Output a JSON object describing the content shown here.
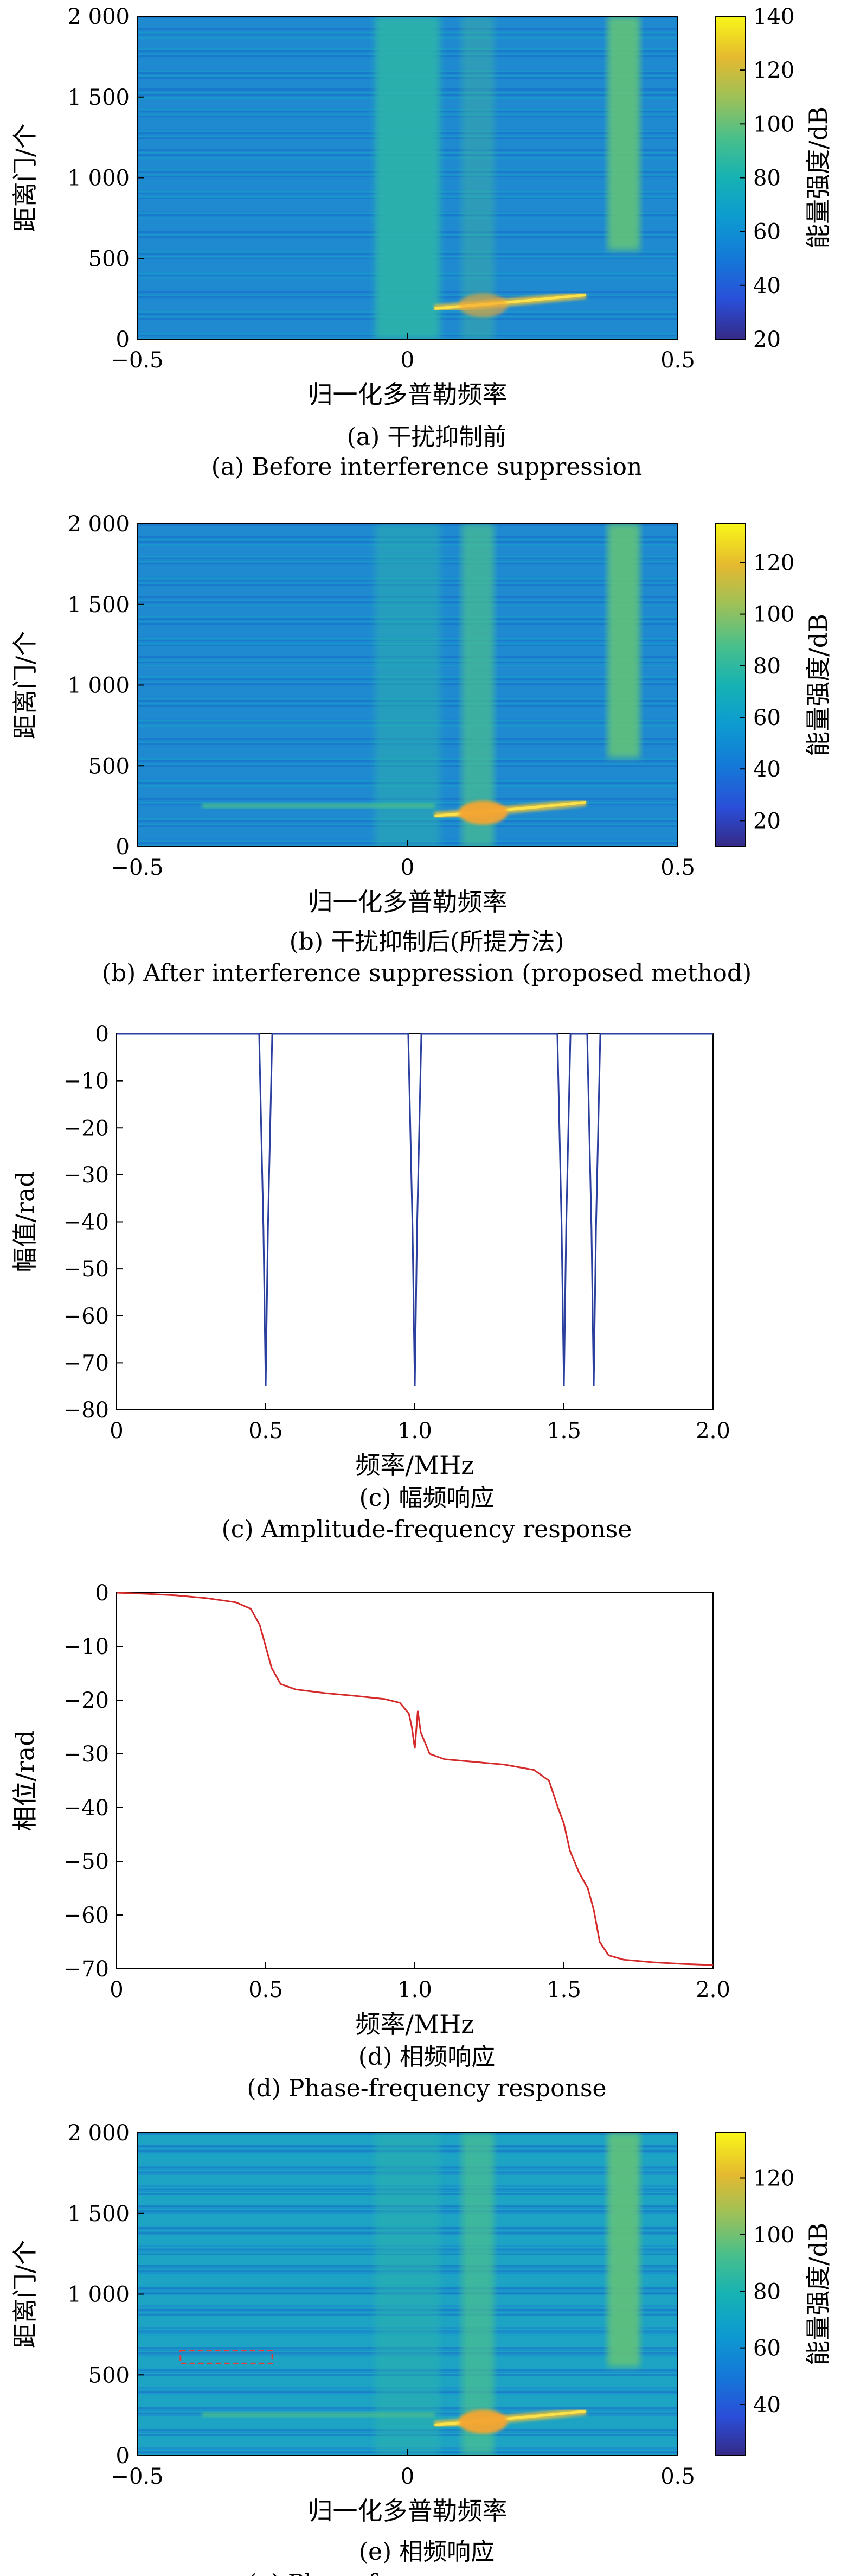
{
  "chart_data": [
    {
      "id": "a",
      "type": "heatmap",
      "xlabel": "归一化多普勒频率",
      "ylabel": "距离门/个",
      "colorbar_label": "能量强度/dB",
      "xlim": [
        -0.5,
        0.5
      ],
      "ylim": [
        0,
        2000
      ],
      "x_ticks": [
        "−0.5",
        "0",
        "0.5"
      ],
      "y_ticks": [
        "0",
        "500",
        "1 000",
        "1 500",
        "2 000"
      ],
      "colorbar_range": [
        20,
        140
      ],
      "colorbar_ticks": [
        "20",
        "40",
        "60",
        "80",
        "100",
        "120",
        "140"
      ],
      "caption_cn": "(a) 干扰抑制前",
      "caption_en": "(a) Before interference suppression"
    },
    {
      "id": "b",
      "type": "heatmap",
      "xlabel": "归一化多普勒频率",
      "ylabel": "距离门/个",
      "colorbar_label": "能量强度/dB",
      "xlim": [
        -0.5,
        0.5
      ],
      "ylim": [
        0,
        2000
      ],
      "x_ticks": [
        "−0.5",
        "0",
        "0.5"
      ],
      "y_ticks": [
        "0",
        "500",
        "1 000",
        "1 500",
        "2 000"
      ],
      "colorbar_range": [
        10,
        135
      ],
      "colorbar_ticks": [
        "20",
        "40",
        "60",
        "80",
        "100",
        "120"
      ],
      "caption_cn": "(b) 干扰抑制后(所提方法)",
      "caption_en": "(b) After interference suppression (proposed method)"
    },
    {
      "id": "c",
      "type": "line",
      "xlabel": "频率/MHz",
      "ylabel": "幅值/rad",
      "xlim": [
        0,
        2.0
      ],
      "ylim": [
        -80,
        0
      ],
      "x_ticks": [
        "0",
        "0.5",
        "1.0",
        "1.5",
        "2.0"
      ],
      "y_ticks": [
        "0",
        "−10",
        "−20",
        "−30",
        "−40",
        "−50",
        "−60",
        "−70",
        "−80"
      ],
      "line_color": "#2b3f9e",
      "notch_centers": [
        0.5,
        1.0,
        1.5,
        1.6
      ],
      "notch_depth": -75,
      "notch_half_width": 0.022,
      "caption_cn": "(c) 幅频响应",
      "caption_en": "(c) Amplitude-frequency response"
    },
    {
      "id": "d",
      "type": "line",
      "xlabel": "频率/MHz",
      "ylabel": "相位/rad",
      "xlim": [
        0,
        2.0
      ],
      "ylim": [
        -70,
        0
      ],
      "x_ticks": [
        "0",
        "0.5",
        "1.0",
        "1.5",
        "2.0"
      ],
      "y_ticks": [
        "0",
        "−10",
        "−20",
        "−30",
        "−40",
        "−50",
        "−60",
        "−70"
      ],
      "line_color": "#d42a2a",
      "x": [
        0,
        0.1,
        0.2,
        0.3,
        0.4,
        0.45,
        0.48,
        0.5,
        0.52,
        0.55,
        0.6,
        0.7,
        0.8,
        0.9,
        0.95,
        0.98,
        0.99,
        1.0,
        1.01,
        1.02,
        1.05,
        1.1,
        1.2,
        1.3,
        1.4,
        1.45,
        1.48,
        1.5,
        1.52,
        1.55,
        1.58,
        1.6,
        1.62,
        1.65,
        1.7,
        1.8,
        1.9,
        2.0
      ],
      "y": [
        0,
        -0.2,
        -0.5,
        -1,
        -1.8,
        -3,
        -6,
        -10,
        -14,
        -17,
        -18,
        -18.7,
        -19.2,
        -19.8,
        -20.5,
        -22.5,
        -25,
        -29,
        -22,
        -26,
        -30,
        -31,
        -31.5,
        -32,
        -33,
        -35,
        -40,
        -43,
        -48,
        -52,
        -55,
        -59,
        -65,
        -67.5,
        -68.3,
        -68.8,
        -69.1,
        -69.3
      ],
      "caption_cn": "(d) 相频响应",
      "caption_en": "(d) Phase-frequency response"
    },
    {
      "id": "e",
      "type": "heatmap",
      "xlabel": "归一化多普勒频率",
      "ylabel": "距离门/个",
      "colorbar_label": "能量强度/dB",
      "xlim": [
        -0.5,
        0.5
      ],
      "ylim": [
        0,
        2000
      ],
      "x_ticks": [
        "−0.5",
        "0",
        "0.5"
      ],
      "y_ticks": [
        "0",
        "500",
        "1 000",
        "1 500",
        "2 000"
      ],
      "colorbar_range": [
        22,
        136
      ],
      "colorbar_ticks": [
        "40",
        "60",
        "80",
        "100",
        "120"
      ],
      "highlight_box": {
        "x": [
          -0.42,
          -0.25
        ],
        "y": [
          570,
          650
        ],
        "color": "#e23a3a"
      },
      "caption_cn": "(e) 相频响应",
      "caption_en": "(e) Phase-frequency response"
    }
  ]
}
